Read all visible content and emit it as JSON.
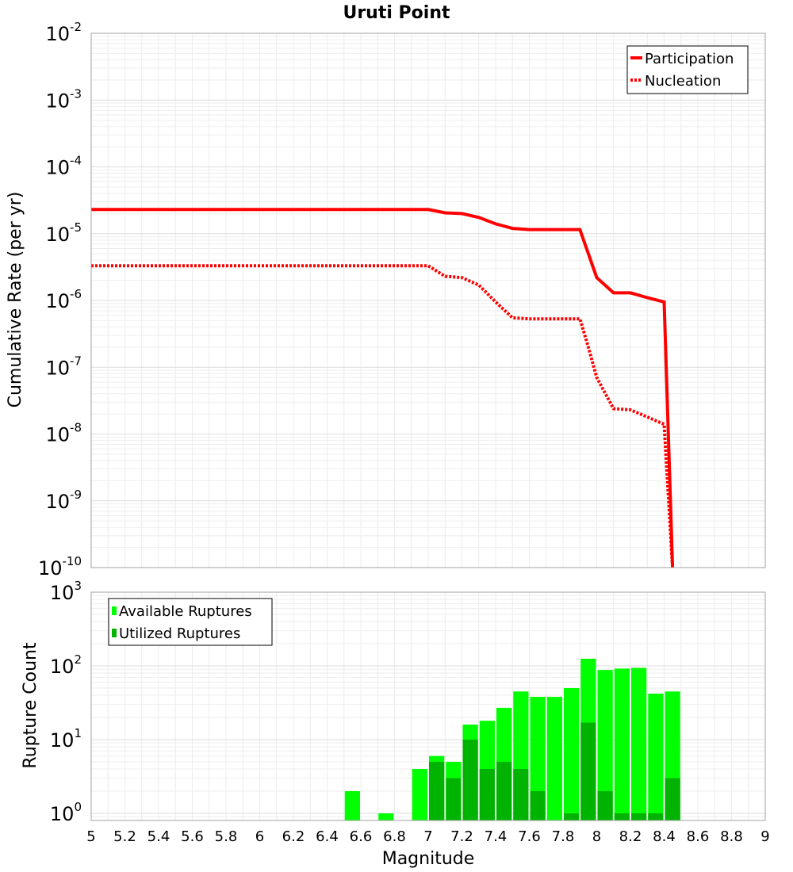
{
  "chart_data": [
    {
      "type": "line",
      "title": "Uruti Point",
      "ylabel": "Cumulative Rate (per yr)",
      "xlabel": "",
      "xlim": [
        5,
        9
      ],
      "ylim": [
        1e-10,
        0.01
      ],
      "yscale": "log",
      "grid": true,
      "legend_position": "top-right",
      "y_ticks": [
        {
          "base": "10",
          "exp": "-2"
        },
        {
          "base": "10",
          "exp": "-3"
        },
        {
          "base": "10",
          "exp": "-4"
        },
        {
          "base": "10",
          "exp": "-5"
        },
        {
          "base": "10",
          "exp": "-6"
        },
        {
          "base": "10",
          "exp": "-7"
        },
        {
          "base": "10",
          "exp": "-8"
        },
        {
          "base": "10",
          "exp": "-9"
        },
        {
          "base": "10",
          "exp": "-10"
        }
      ],
      "series": [
        {
          "name": "Participation",
          "style": "solid",
          "color": "#ff0000",
          "x": [
            5.0,
            7.0,
            7.1,
            7.2,
            7.3,
            7.4,
            7.5,
            7.6,
            7.7,
            7.8,
            7.9,
            8.0,
            8.1,
            8.2,
            8.3,
            8.4,
            8.45
          ],
          "y": [
            2.3e-05,
            2.3e-05,
            2.05e-05,
            2e-05,
            1.75e-05,
            1.4e-05,
            1.2e-05,
            1.15e-05,
            1.15e-05,
            1.15e-05,
            1.15e-05,
            2.2e-06,
            1.3e-06,
            1.3e-06,
            1.1e-06,
            9.5e-07,
            1e-10
          ]
        },
        {
          "name": "Nucleation",
          "style": "dotted",
          "color": "#ff0000",
          "x": [
            5.0,
            7.0,
            7.1,
            7.2,
            7.3,
            7.4,
            7.5,
            7.6,
            7.7,
            7.8,
            7.9,
            7.95,
            8.0,
            8.1,
            8.2,
            8.3,
            8.4,
            8.45
          ],
          "y": [
            3.3e-06,
            3.3e-06,
            2.3e-06,
            2.2e-06,
            1.7e-06,
            9.5e-07,
            5.5e-07,
            5.3e-07,
            5.3e-07,
            5.3e-07,
            5.3e-07,
            2e-07,
            7e-08,
            2.4e-08,
            2.3e-08,
            1.8e-08,
            1.4e-08,
            1e-10
          ]
        }
      ]
    },
    {
      "type": "bar",
      "title": "",
      "ylabel": "Rupture Count",
      "xlabel": "Magnitude",
      "xlim": [
        5,
        9
      ],
      "ylim": [
        0.8,
        1000
      ],
      "yscale": "log",
      "grid": true,
      "legend_position": "top-left",
      "x_ticks": [
        "5",
        "5.2",
        "5.4",
        "5.6",
        "5.8",
        "6",
        "6.2",
        "6.4",
        "6.6",
        "6.8",
        "7",
        "7.2",
        "7.4",
        "7.6",
        "7.8",
        "8",
        "8.2",
        "8.4",
        "8.6",
        "8.8",
        "9"
      ],
      "y_ticks": [
        {
          "base": "10",
          "exp": "3"
        },
        {
          "base": "10",
          "exp": "2"
        },
        {
          "base": "10",
          "exp": "1"
        },
        {
          "base": "10",
          "exp": "0"
        }
      ],
      "bin_width": 0.1,
      "series": [
        {
          "name": "Available Ruptures",
          "color": "#00ff00",
          "x": [
            6.55,
            6.75,
            6.95,
            7.05,
            7.15,
            7.25,
            7.35,
            7.45,
            7.55,
            7.65,
            7.75,
            7.85,
            7.95,
            8.05,
            8.15,
            8.25,
            8.35,
            8.45
          ],
          "values": [
            2,
            1,
            4,
            6,
            5,
            16,
            18,
            27,
            45,
            38,
            38,
            50,
            125,
            88,
            92,
            94,
            42,
            45
          ]
        },
        {
          "name": "Utilized Ruptures",
          "color": "#00b300",
          "x": [
            7.05,
            7.15,
            7.25,
            7.35,
            7.45,
            7.55,
            7.65,
            7.85,
            7.95,
            8.05,
            8.15,
            8.25,
            8.35,
            8.45
          ],
          "values": [
            5,
            3,
            10,
            4,
            5,
            4,
            2,
            1,
            17,
            2,
            1,
            1,
            1,
            3
          ]
        }
      ]
    }
  ]
}
